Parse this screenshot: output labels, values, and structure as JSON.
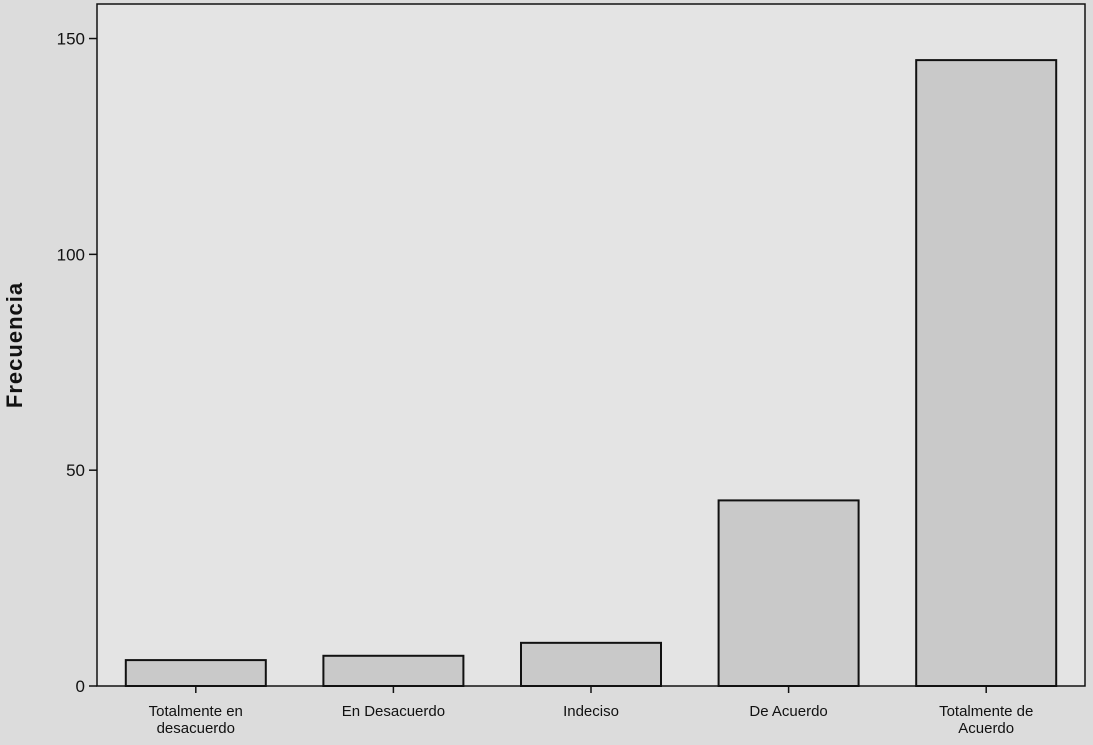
{
  "chart_data": {
    "type": "bar",
    "categories": [
      "Totalmente en desacuerdo",
      "En Desacuerdo",
      "Indeciso",
      "De Acuerdo",
      "Totalmente de Acuerdo"
    ],
    "category_lines": [
      [
        "Totalmente en",
        "desacuerdo"
      ],
      [
        "En Desacuerdo"
      ],
      [
        "Indeciso"
      ],
      [
        "De Acuerdo"
      ],
      [
        "Totalmente de",
        "Acuerdo"
      ]
    ],
    "values": [
      6,
      7,
      10,
      43,
      145
    ],
    "ylabel": "Frecuencia",
    "ylim": [
      0,
      158
    ],
    "yticks": [
      0,
      50,
      100,
      150
    ],
    "grid": false,
    "colors": {
      "background": "#dcdcdc",
      "plot_background": "#e4e4e4",
      "bar_fill": "#c9c9c9",
      "bar_stroke": "#111111",
      "axis": "#111111"
    }
  }
}
